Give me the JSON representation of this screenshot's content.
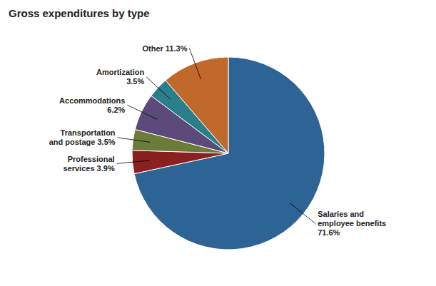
{
  "chart_data": {
    "type": "pie",
    "title": "Gross expenditures by type",
    "categories": [
      "Salaries and\nemployee benefits\n71.6%",
      "Professional\nservices 3.9%",
      "Transportation\nand postage 3.5%",
      "Accommodations\n6.2%",
      "Amortization\n3.5%",
      "Other 11.3%"
    ],
    "values": [
      71.6,
      3.9,
      3.5,
      6.2,
      3.5,
      11.3
    ],
    "colors": [
      "#2E6395",
      "#8B2020",
      "#6B7B3A",
      "#5B4A7A",
      "#2A7F8A",
      "#C1692A"
    ]
  }
}
